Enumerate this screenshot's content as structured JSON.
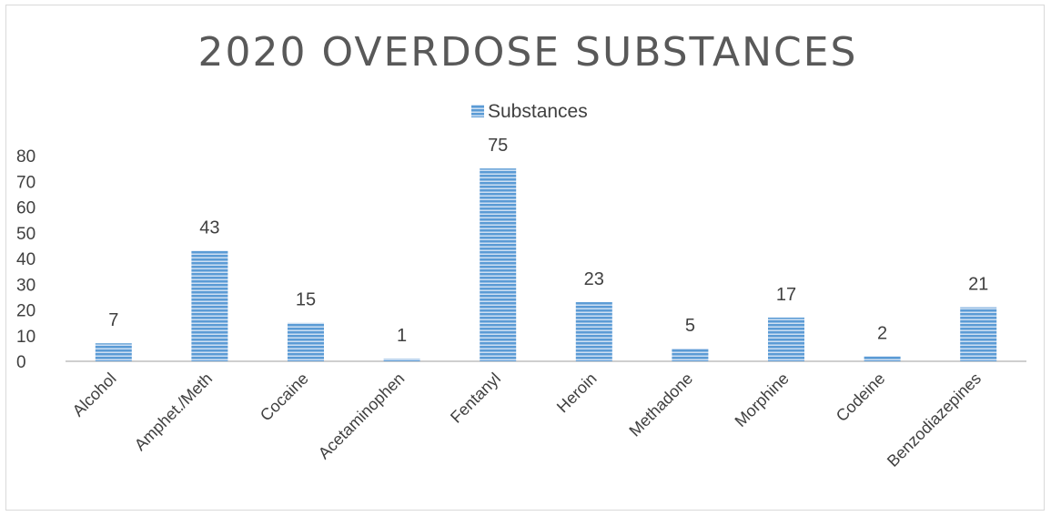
{
  "chart_data": {
    "type": "bar",
    "title": "2020 OVERDOSE SUBSTANCES",
    "xlabel": "",
    "ylabel": "",
    "categories": [
      "Alcohol",
      "Amphet./Meth",
      "Cocaine",
      "Acetaminophen",
      "Fentanyl",
      "Heroin",
      "Methadone",
      "Morphine",
      "Codeine",
      "Benzodiazepines"
    ],
    "series": [
      {
        "name": "Substances",
        "values": [
          7,
          43,
          15,
          1,
          75,
          23,
          5,
          17,
          2,
          21
        ]
      }
    ],
    "ylim": [
      0,
      80
    ],
    "yticks": [
      0,
      10,
      20,
      30,
      40,
      50,
      60,
      70,
      80
    ],
    "grid": false,
    "legend": "top-center",
    "colors": {
      "bar": "#5b9bd5",
      "bar_stripe": "#ffffff",
      "axis": "#bfbfbf"
    }
  }
}
